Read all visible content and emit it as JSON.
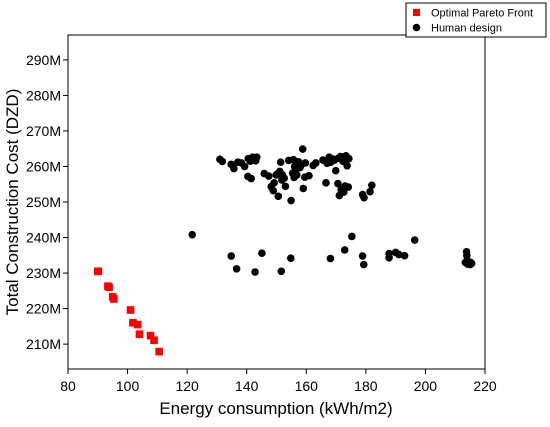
{
  "chart_data": {
    "type": "scatter",
    "xlabel": "Energy consumption (kWh/m2)",
    "ylabel": "Total Construction Cost (DZD)",
    "xlim": [
      80,
      220
    ],
    "ylim": [
      203000000,
      297000000
    ],
    "x_ticks": [
      80,
      100,
      120,
      140,
      160,
      180,
      200,
      220
    ],
    "x_tick_labels": [
      "80",
      "100",
      "120",
      "140",
      "160",
      "180",
      "200",
      "220"
    ],
    "y_ticks": [
      210000000,
      220000000,
      230000000,
      240000000,
      250000000,
      260000000,
      270000000,
      280000000,
      290000000
    ],
    "y_tick_labels": [
      "210M",
      "220M",
      "230M",
      "240M",
      "250M",
      "260M",
      "270M",
      "280M",
      "290M"
    ],
    "grid": false,
    "legend_position": "top-right",
    "series": [
      {
        "name": "Optimal Pareto Front",
        "marker": "square",
        "color": "#ff0000",
        "points": [
          [
            90.0,
            230.5
          ],
          [
            90.2,
            230.5
          ],
          [
            93.4,
            226.3
          ],
          [
            93.8,
            226.0
          ],
          [
            95.0,
            223.3
          ],
          [
            95.4,
            222.7
          ],
          [
            101.0,
            219.6
          ],
          [
            101.8,
            216.0
          ],
          [
            103.4,
            215.5
          ],
          [
            104.0,
            212.8
          ],
          [
            107.7,
            212.4
          ],
          [
            108.9,
            211.1
          ],
          [
            110.6,
            207.9
          ]
        ]
      },
      {
        "name": "Human design",
        "marker": "circle",
        "color": "#000000",
        "points": [
          [
            131.0,
            262.0
          ],
          [
            131.8,
            261.4
          ],
          [
            134.8,
            260.6
          ],
          [
            135.7,
            259.4
          ],
          [
            137.0,
            261.2
          ],
          [
            138.2,
            261.0
          ],
          [
            139.3,
            260.0
          ],
          [
            140.5,
            262.2
          ],
          [
            140.4,
            257.2
          ],
          [
            141.5,
            256.6
          ],
          [
            141.2,
            261.5
          ],
          [
            142.0,
            262.6
          ],
          [
            143.0,
            261.6
          ],
          [
            143.4,
            262.6
          ],
          [
            145.9,
            258.0
          ],
          [
            147.4,
            257.3
          ],
          [
            148.2,
            254.3
          ],
          [
            148.9,
            253.2
          ],
          [
            149.2,
            255.4
          ],
          [
            149.9,
            257.6
          ],
          [
            150.2,
            257.8
          ],
          [
            150.6,
            251.6
          ],
          [
            151.1,
            258.6
          ],
          [
            151.4,
            261.2
          ],
          [
            151.8,
            256.2
          ],
          [
            152.0,
            257.6
          ],
          [
            152.6,
            256.7
          ],
          [
            153.0,
            254.4
          ],
          [
            154.1,
            261.7
          ],
          [
            154.9,
            250.4
          ],
          [
            155.4,
            258.1
          ],
          [
            155.9,
            256.9
          ],
          [
            155.7,
            261.9
          ],
          [
            156.1,
            260.0
          ],
          [
            156.4,
            258.6
          ],
          [
            156.8,
            257.6
          ],
          [
            157.4,
            261.3
          ],
          [
            157.9,
            259.7
          ],
          [
            158.3,
            260.4
          ],
          [
            158.8,
            264.9
          ],
          [
            159.0,
            253.8
          ],
          [
            159.5,
            257.0
          ],
          [
            159.7,
            261.0
          ],
          [
            160.9,
            257.4
          ],
          [
            162.3,
            260.3
          ],
          [
            163.2,
            261.0
          ],
          [
            165.6,
            261.8
          ],
          [
            166.6,
            255.4
          ],
          [
            167.0,
            260.9
          ],
          [
            167.7,
            262.6
          ],
          [
            168.2,
            261.2
          ],
          [
            168.9,
            262.1
          ],
          [
            169.5,
            261.8
          ],
          [
            169.9,
            258.8
          ],
          [
            170.6,
            255.2
          ],
          [
            170.7,
            262.3
          ],
          [
            171.1,
            251.8
          ],
          [
            171.5,
            262.8
          ],
          [
            171.7,
            253.5
          ],
          [
            172.3,
            261.5
          ],
          [
            172.6,
            252.8
          ],
          [
            173.0,
            254.5
          ],
          [
            173.3,
            263.0
          ],
          [
            173.7,
            260.2
          ],
          [
            174.1,
            254.2
          ],
          [
            174.3,
            262.2
          ],
          [
            178.9,
            252.1
          ],
          [
            179.4,
            251.2
          ],
          [
            181.4,
            252.9
          ],
          [
            182.0,
            254.7
          ],
          [
            121.7,
            240.8
          ],
          [
            134.8,
            234.8
          ],
          [
            136.6,
            231.2
          ],
          [
            142.8,
            230.3
          ],
          [
            145.1,
            235.6
          ],
          [
            151.6,
            230.5
          ],
          [
            154.8,
            234.2
          ],
          [
            168.1,
            234.1
          ],
          [
            172.9,
            236.5
          ],
          [
            175.3,
            240.3
          ],
          [
            178.9,
            234.8
          ],
          [
            179.3,
            232.4
          ],
          [
            187.8,
            235.5
          ],
          [
            187.8,
            234.3
          ],
          [
            190.0,
            235.8
          ],
          [
            191.1,
            235.2
          ],
          [
            193.0,
            234.9
          ],
          [
            196.4,
            239.3
          ],
          [
            213.8,
            236.0
          ],
          [
            213.9,
            234.9
          ],
          [
            213.4,
            233.0
          ],
          [
            214.3,
            232.5
          ],
          [
            214.0,
            233.6
          ],
          [
            214.8,
            232.9
          ],
          [
            215.0,
            232.4
          ],
          [
            215.2,
            233.0
          ],
          [
            215.5,
            232.7
          ],
          [
            214.1,
            232.6
          ]
        ]
      }
    ]
  }
}
